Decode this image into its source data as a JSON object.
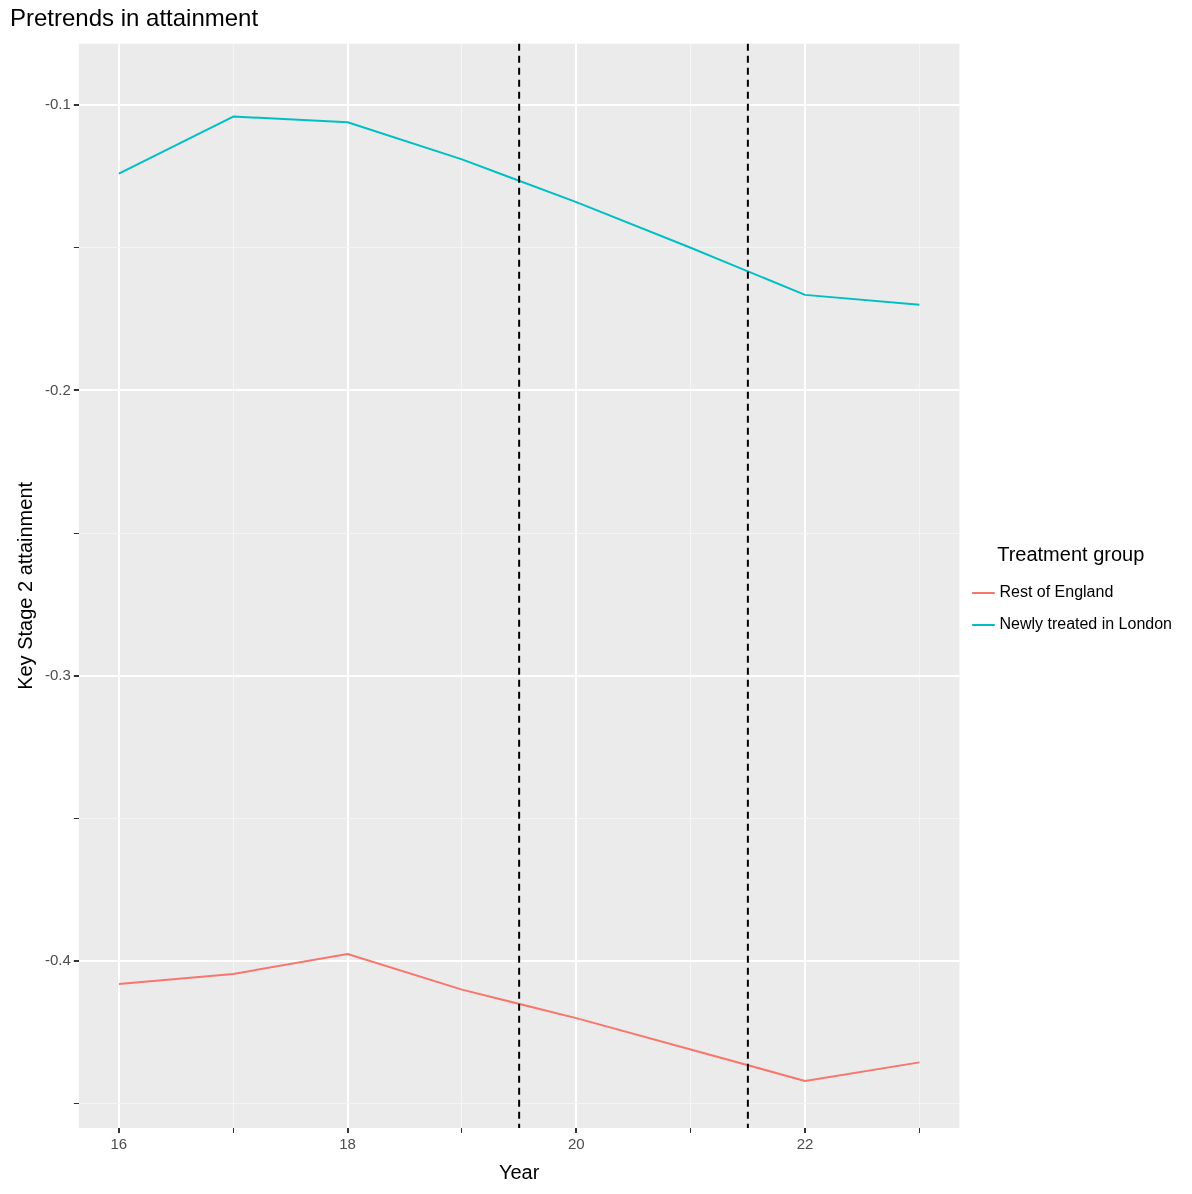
{
  "chart_data": {
    "type": "line",
    "title": "Pretrends in attainment",
    "xlabel": "Year",
    "ylabel": "Key Stage 2 attainment",
    "legend_title": "Treatment group",
    "legend": "right",
    "x": [
      16,
      17,
      18,
      19,
      20,
      21,
      22,
      23
    ],
    "series": [
      {
        "name": "Rest of England",
        "color": "#f8766d",
        "values": [
          -0.408,
          -0.4045,
          -0.3975,
          -0.41,
          -0.42,
          -0.431,
          -0.442,
          -0.4355
        ]
      },
      {
        "name": "Newly treated in London",
        "color": "#00bfc4",
        "values": [
          -0.124,
          -0.104,
          -0.106,
          -0.119,
          -0.134,
          -0.15,
          -0.1665,
          -0.17
        ]
      }
    ],
    "xlim": [
      15.65,
      23.35
    ],
    "ylim": [
      -0.4585,
      -0.0785
    ],
    "xticks": [
      16,
      {
        "value": 17,
        "label": null
      },
      18,
      {
        "value": 19,
        "label": null
      },
      20,
      {
        "value": 21,
        "label": null
      },
      22,
      {
        "value": 23,
        "label": null
      }
    ],
    "yticks": [
      {
        "value": -0.45,
        "label": null
      },
      {
        "value": -0.4,
        "label": "-0.4"
      },
      {
        "value": -0.35,
        "label": null
      },
      {
        "value": -0.3,
        "label": "-0.3"
      },
      {
        "value": -0.25,
        "label": null
      },
      {
        "value": -0.2,
        "label": "-0.2"
      },
      {
        "value": -0.15,
        "label": null
      },
      {
        "value": -0.1,
        "label": "-0.1"
      }
    ],
    "grid": true,
    "marker": "none",
    "line_style": "solid",
    "ref_lines": [
      {
        "axis": "x",
        "value": 19.5,
        "color": "#000000",
        "line_style": "dashed"
      },
      {
        "axis": "x",
        "value": 21.5,
        "color": "#000000",
        "line_style": "dashed"
      }
    ]
  }
}
